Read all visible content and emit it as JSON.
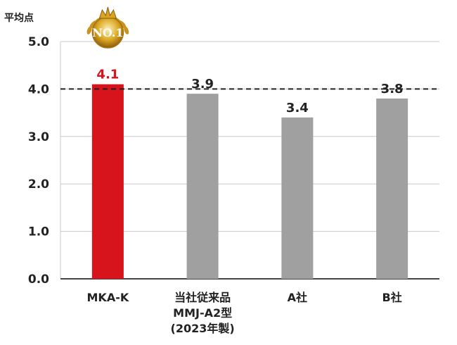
{
  "chart_data": {
    "type": "bar",
    "ylabel": "平均点",
    "ylim": [
      0,
      5
    ],
    "yticks": [
      "0.0",
      "1.0",
      "2.0",
      "3.0",
      "4.0",
      "5.0"
    ],
    "categories": [
      [
        "MKA-K"
      ],
      [
        "当社従来品",
        "MMJ-A2型",
        "(2023年製)"
      ],
      [
        "A社"
      ],
      [
        "B社"
      ]
    ],
    "values": [
      4.1,
      3.9,
      3.4,
      3.8
    ],
    "value_labels": [
      "4.1",
      "3.9",
      "3.4",
      "3.8"
    ],
    "reference_line": 4.0,
    "highlight_index": 0,
    "badge": "NO.1",
    "grid": true,
    "colors": {
      "highlight": "#d7141b",
      "bar": "#a0a0a0",
      "grid": "#c8c8c8",
      "axis": "#444444",
      "badge_gold": "#d9a520"
    }
  }
}
